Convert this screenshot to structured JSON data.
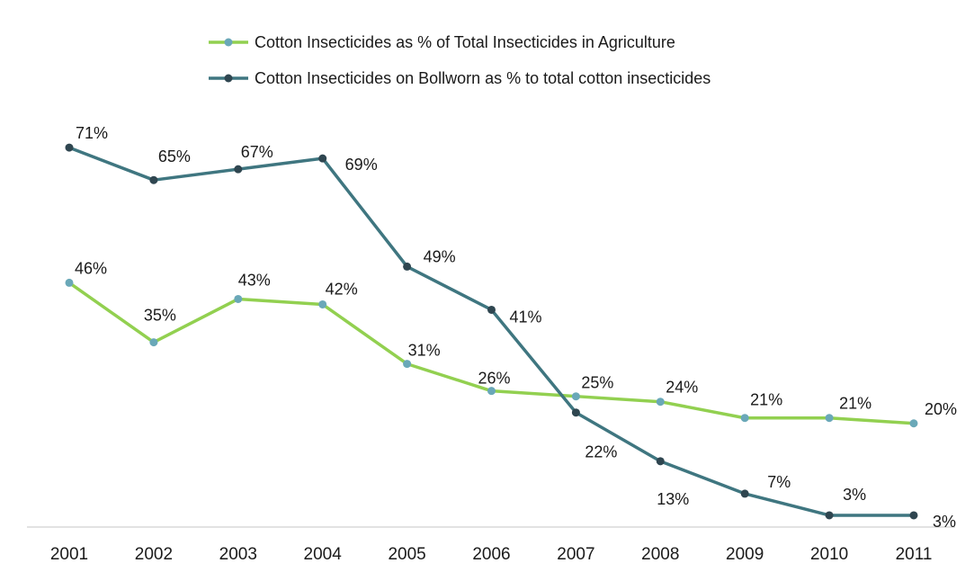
{
  "chart_data": {
    "type": "line",
    "title": "",
    "xlabel": "",
    "ylabel": "",
    "categories": [
      "2001",
      "2002",
      "2003",
      "2004",
      "2005",
      "2006",
      "2007",
      "2008",
      "2009",
      "2010",
      "2011"
    ],
    "ylim": [
      0,
      80
    ],
    "grid": false,
    "legend_position": "top-center",
    "series": [
      {
        "name": "Cotton Insecticides as % of Total Insecticides in Agriculture",
        "color": "#92d050",
        "marker_color": "#6aa8b8",
        "values": [
          46,
          35,
          43,
          42,
          31,
          26,
          25,
          24,
          21,
          21,
          20
        ],
        "labels": [
          "46%",
          "35%",
          "43%",
          "42%",
          "31%",
          "26%",
          "25%",
          "24%",
          "21%",
          "21%",
          "20%"
        ]
      },
      {
        "name": "Cotton Insecticides on Bollworn as % to total cotton insecticides",
        "color": "#3f7680",
        "marker_color": "#2f4650",
        "values": [
          71,
          65,
          67,
          69,
          49,
          41,
          22,
          13,
          7,
          3,
          3
        ],
        "labels": [
          "71%",
          "65%",
          "67%",
          "69%",
          "49%",
          "41%",
          "22%",
          "13%",
          "7%",
          "3%",
          "3%"
        ]
      }
    ]
  }
}
